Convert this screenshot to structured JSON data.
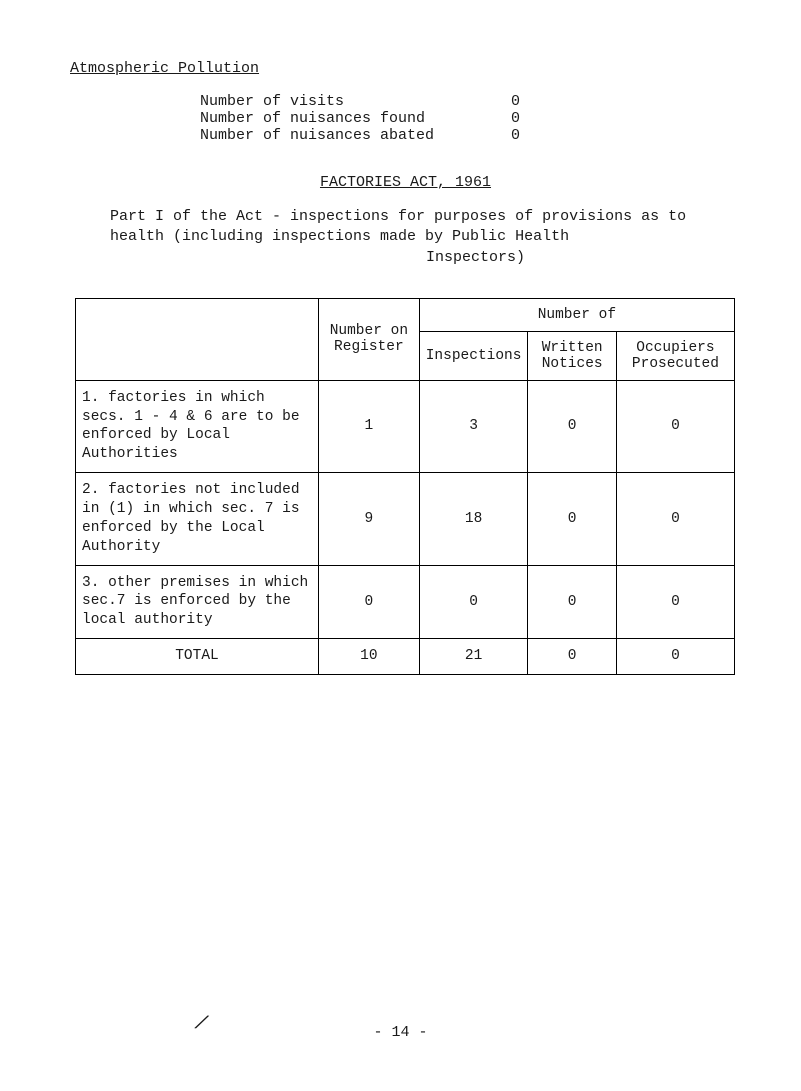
{
  "atmos": {
    "title": "Atmospheric Pollution",
    "lines": [
      {
        "label": "Number of visits",
        "value": "0"
      },
      {
        "label": "Number of nuisances found",
        "value": "0"
      },
      {
        "label": "Number of nuisances abated",
        "value": "0"
      }
    ]
  },
  "act": {
    "title": "FACTORIES ACT, 1961",
    "para_a": "Part I of the Act - inspections for purposes of provisions as to health (including inspections made by Public Health",
    "para_b": "Inspectors)"
  },
  "table": {
    "header": {
      "col1": "Number on Register",
      "group": "Number of",
      "sub1": "Inspections",
      "sub2": "Written Notices",
      "sub3": "Occupiers Prosecuted"
    },
    "rows": [
      {
        "label": "1. factories in which secs. 1 - 4 & 6 are to be enforced by Local Authorities",
        "c1": "1",
        "c2": "3",
        "c3": "0",
        "c4": "0"
      },
      {
        "label": "2. factories not included in (1) in which sec. 7 is enforced by the Local Authority",
        "c1": "9",
        "c2": "18",
        "c3": "0",
        "c4": "0"
      },
      {
        "label": "3. other premises in which sec.7 is enforced by the local authority",
        "c1": "0",
        "c2": "0",
        "c3": "0",
        "c4": "0"
      },
      {
        "label": "TOTAL",
        "c1": "10",
        "c2": "21",
        "c3": "0",
        "c4": "0"
      }
    ]
  },
  "footer": {
    "pagenum": "- 14 -",
    "slash": "/"
  }
}
